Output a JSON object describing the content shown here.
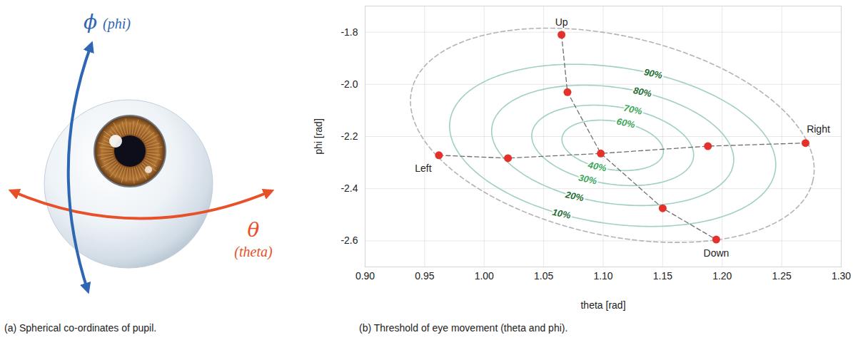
{
  "panel_a": {
    "caption": "(a) Spherical co-ordinates of pupil.",
    "phi": {
      "symbol": "ϕ",
      "name": "(phi)",
      "color": "#2f66b3"
    },
    "theta": {
      "symbol": "θ",
      "name": "(theta)",
      "color": "#e8502a"
    }
  },
  "chart_data": {
    "type": "contour",
    "caption": "(b) Threshold of eye movement (theta and phi).",
    "xlabel": "theta [rad]",
    "ylabel": "phi [rad]",
    "xlim": [
      0.9,
      1.3
    ],
    "ylim": [
      -2.7,
      -1.7
    ],
    "xticks": [
      {
        "value": 0.9,
        "label": "0.90"
      },
      0.95,
      {
        "value": 1,
        "label": "1.00"
      },
      1.05,
      {
        "value": 1.1,
        "label": "1.10"
      },
      1.15,
      {
        "value": 1.2,
        "label": "1.20"
      },
      1.25,
      {
        "value": 1.3,
        "label": "1.30"
      }
    ],
    "yticks": [
      -1.8,
      {
        "value": -2,
        "label": "-2.0"
      },
      -2.2,
      -2.4,
      -2.6
    ],
    "grid": true,
    "series": [
      {
        "type": "ellipse",
        "line_style": "dashed",
        "color": "#b3b3b3",
        "center": [
          1.1077,
          -2.1954
        ],
        "axis1": [
          0.1685,
          -0.1742
        ],
        "axis2": [
          -0.0192,
          -0.372
        ]
      },
      {
        "type": "ellipse",
        "line_style": "solid",
        "color": "#9fd0c2",
        "center": [
          1.108,
          -2.234
        ],
        "axis1": [
          0.1366,
          -0.0964
        ],
        "axis2": [
          -0.0104,
          -0.2955
        ],
        "labels": [
          {
            "text": "90%",
            "theta": 1.142,
            "phi": -1.96
          },
          {
            "text": "10%",
            "theta": 1.065,
            "phi": -2.497
          }
        ]
      },
      {
        "type": "ellipse",
        "line_style": "solid",
        "color": "#9fd0c2",
        "center": [
          1.108,
          -2.234
        ],
        "axis1": [
          0.1014,
          -0.0715
        ],
        "axis2": [
          -0.0077,
          -0.2193
        ],
        "labels": [
          {
            "text": "80%",
            "theta": 1.133,
            "phi": -2.03
          },
          {
            "text": "20%",
            "theta": 1.076,
            "phi": -2.43
          }
        ]
      },
      {
        "type": "ellipse",
        "line_style": "solid",
        "color": "#9fd0c2",
        "center": [
          1.108,
          -2.234
        ],
        "axis1": [
          0.0678,
          -0.0478
        ],
        "axis2": [
          -0.0052,
          -0.1466
        ],
        "labels": [
          {
            "text": "70%",
            "theta": 1.125,
            "phi": -2.098
          },
          {
            "text": "30%",
            "theta": 1.087,
            "phi": -2.365
          }
        ]
      },
      {
        "type": "ellipse",
        "line_style": "solid",
        "color": "#9fd0c2",
        "center": [
          1.108,
          -2.234
        ],
        "axis1": [
          0.0425,
          -0.03
        ],
        "axis2": [
          -0.0032,
          -0.0919
        ],
        "labels": [
          {
            "text": "60%",
            "theta": 1.119,
            "phi": -2.149
          },
          {
            "text": "40%",
            "theta": 1.095,
            "phi": -2.316
          }
        ]
      },
      {
        "type": "line",
        "line_style": "dashed",
        "color": "#6e6e6e",
        "theta": [
          1.065,
          1.07,
          1.098,
          1.15,
          1.195
        ],
        "phi": [
          -1.81,
          -2.03,
          -2.265,
          -2.475,
          -2.595
        ]
      },
      {
        "type": "line",
        "line_style": "dashed",
        "color": "#6e6e6e",
        "theta": [
          0.962,
          1.02,
          1.098,
          1.188,
          1.27
        ],
        "phi": [
          -2.272,
          -2.283,
          -2.265,
          -2.237,
          -2.225
        ]
      },
      {
        "type": "scatter",
        "marker": "circle",
        "color": "#e3322b",
        "theta": [
          1.065,
          1.07,
          1.098,
          1.15,
          1.195,
          0.962,
          1.02,
          1.188,
          1.27
        ],
        "phi": [
          -1.81,
          -2.03,
          -2.265,
          -2.475,
          -2.595,
          -2.272,
          -2.283,
          -2.237,
          -2.225
        ],
        "labels": [
          "Up",
          null,
          null,
          null,
          "Down",
          "Left",
          null,
          null,
          "Right"
        ]
      }
    ]
  }
}
